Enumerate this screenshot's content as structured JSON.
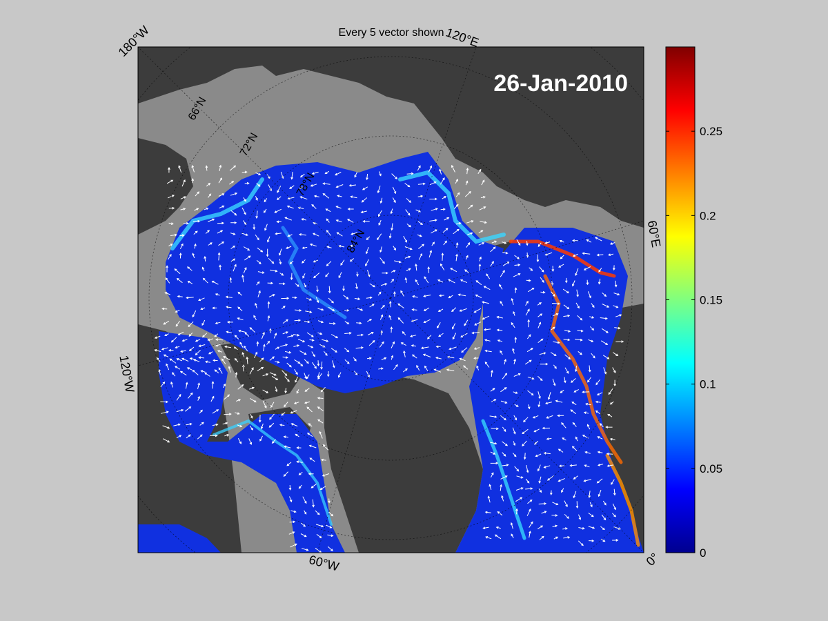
{
  "title": "Every 5 vector shown",
  "date_label": "26-Jan-2010",
  "longitude_labels": {
    "top_left": "180°W",
    "top_right": "120°E",
    "right": "60°E",
    "bottom_right": "0°",
    "bottom": "60°W",
    "left": "120°W"
  },
  "latitude_labels": [
    "66°N",
    "72°N",
    "78°N",
    "84°N"
  ],
  "colorbar": {
    "colormap": "jet",
    "min": 0,
    "max": 0.3,
    "ticks": [
      0,
      0.05,
      0.1,
      0.15,
      0.2,
      0.25
    ],
    "tick_labels": [
      "0",
      "0.05",
      "0.1",
      "0.15",
      "0.2",
      "0.25"
    ]
  },
  "colors": {
    "figure_background": "#c8c8c8",
    "land": "#3c3c3c",
    "ocean_no_data": "#8a8a8a",
    "ice_velocity_low": "#1030e0",
    "vector_arrows": "#ffffff"
  }
}
